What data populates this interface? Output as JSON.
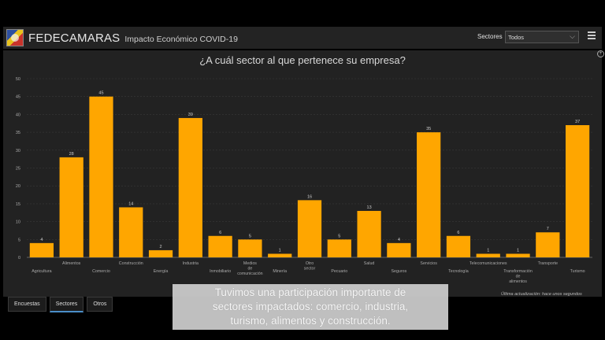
{
  "header": {
    "app_name": "FEDECAMARAS",
    "subtitle": "Impacto Económico COVID-19",
    "filter_label": "Sectores",
    "filter_value": "Todos",
    "logo_icon": "fedecamaras-logo",
    "menu_icon": "hamburger-menu-icon"
  },
  "chart_data": {
    "type": "bar",
    "title": "¿A cuál sector al que pertenece su empresa?",
    "categories": [
      "Agricultura",
      "Alimentos",
      "Comercio",
      "Construcción",
      "Energía",
      "Industria",
      "Inmobiliario",
      "Medios de comunicación",
      "Minería",
      "Otro sector",
      "Pecuario",
      "Salud",
      "Seguros",
      "Servicios",
      "Tecnología",
      "Telecomunicaciones",
      "Transformación de alimentos",
      "Transporte",
      "Turismo"
    ],
    "values": [
      4,
      28,
      45,
      14,
      2,
      39,
      6,
      5,
      1,
      16,
      5,
      13,
      4,
      35,
      6,
      1,
      1,
      7,
      37
    ],
    "ylim": [
      0,
      50
    ],
    "yticks": [
      0,
      5,
      10,
      15,
      20,
      25,
      30,
      35,
      40,
      45,
      50
    ],
    "bar_color": "#ffa600",
    "grid": true
  },
  "footer": {
    "updated": "Última actualización: hace unos segundos"
  },
  "tabs": [
    {
      "label": "Encuestas",
      "active": false
    },
    {
      "label": "Sectores",
      "active": true
    },
    {
      "label": "Otros",
      "active": false
    }
  ],
  "caption": {
    "line1": "Tuvimos una participación importante de",
    "line2": "sectores impactados: comercio, industria,",
    "line3": "turismo, alimentos y construcción."
  }
}
